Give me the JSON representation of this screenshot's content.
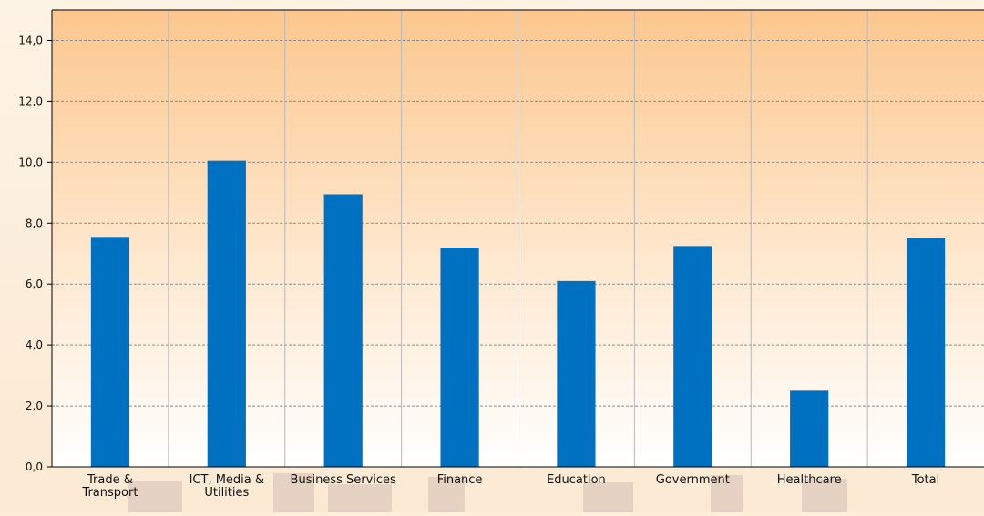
{
  "chart_data": {
    "type": "bar",
    "categories": [
      [
        "Trade &",
        "Transport"
      ],
      [
        "ICT, Media &",
        "Utilities"
      ],
      [
        "Business Services"
      ],
      [
        "Finance"
      ],
      [
        "Education"
      ],
      [
        "Government"
      ],
      [
        "Healthcare"
      ],
      [
        "Total"
      ]
    ],
    "values": [
      7.55,
      10.05,
      8.95,
      7.2,
      6.1,
      7.25,
      2.5,
      7.5
    ],
    "yticks": [
      "0,0",
      "2,0",
      "4,0",
      "6,0",
      "8,0",
      "10,0",
      "12,0",
      "14,0"
    ],
    "ylim": [
      0,
      15
    ],
    "grid": true,
    "colors": {
      "bar": "#0070c0",
      "plot_top": "#fcc78e",
      "plot_bottom": "#ffffff",
      "grid": "#8c8c8c",
      "category_divider": "#b8b8b8",
      "axis": "#000000"
    }
  }
}
